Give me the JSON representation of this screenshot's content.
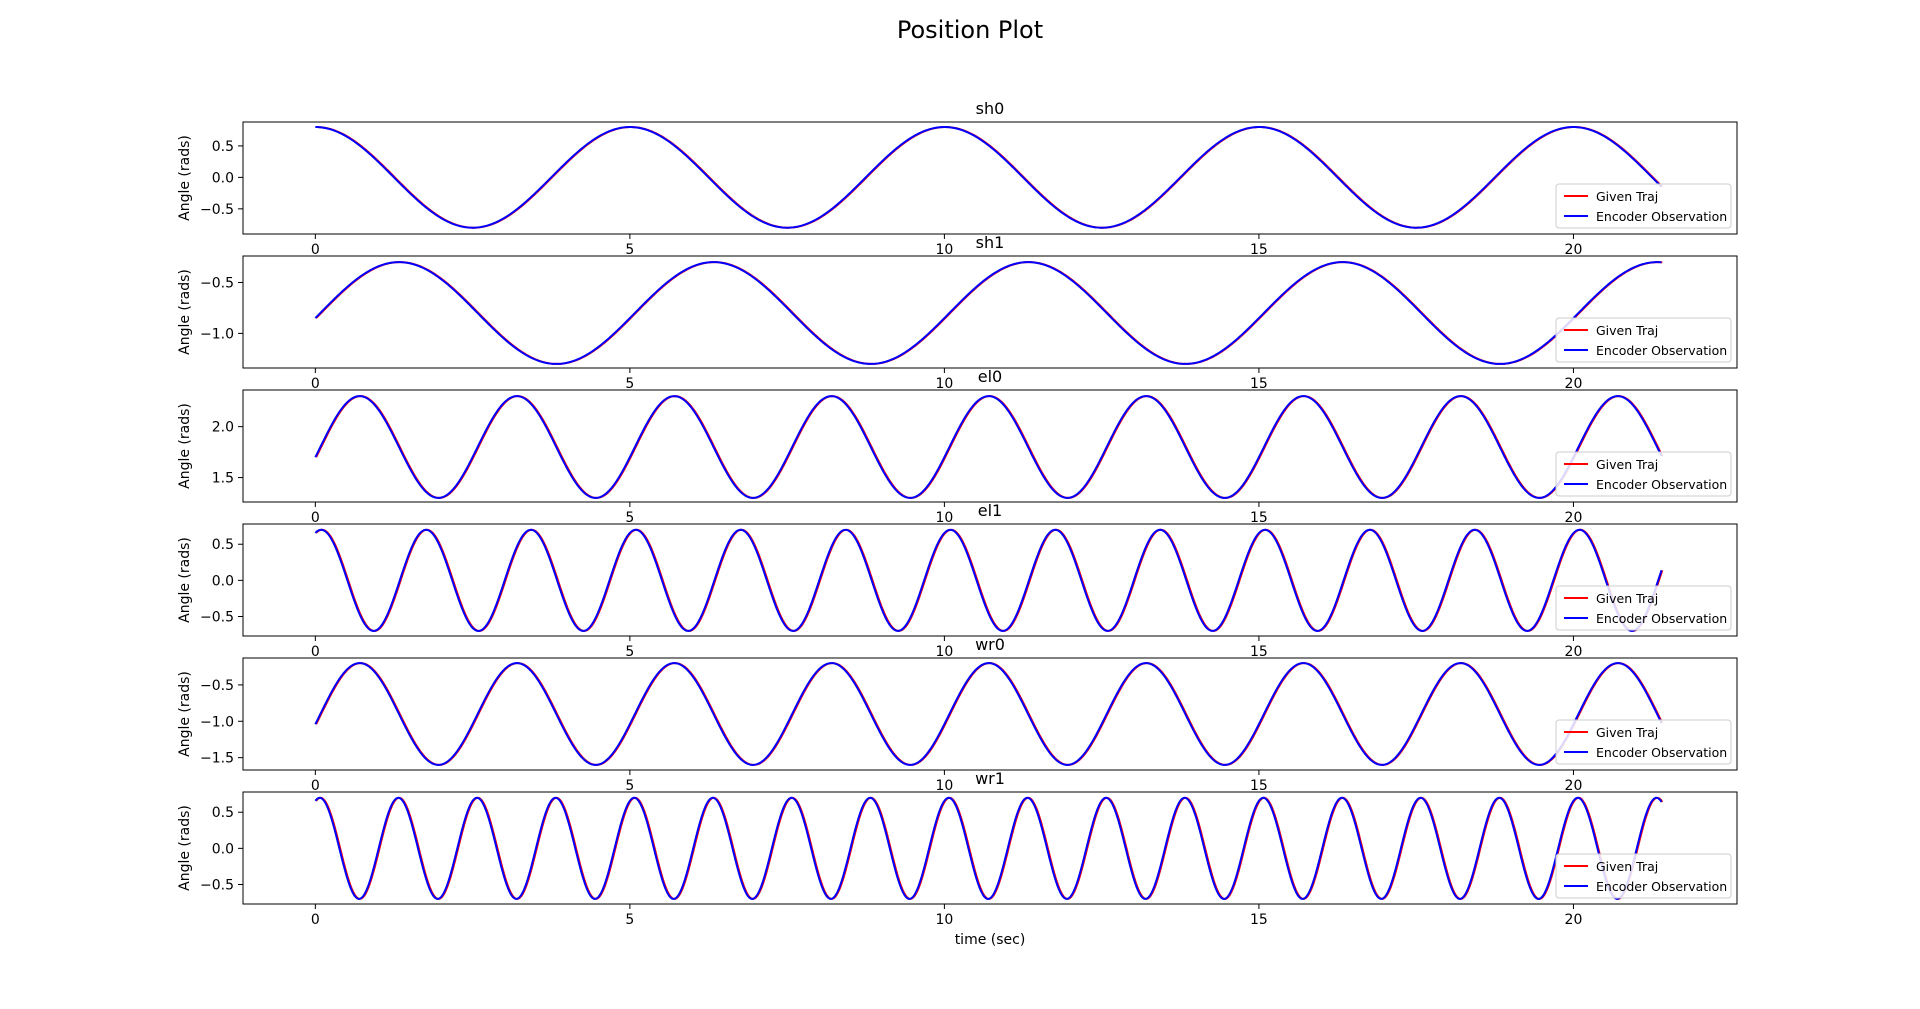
{
  "suptitle": "Position Plot",
  "colors": {
    "given": "#ff0000",
    "encoder": "#0000ff",
    "axes": "#000000",
    "legend_border": "#cccccc"
  },
  "legend_placement": "lower right",
  "chart_data": [
    {
      "type": "line",
      "title": "sh0",
      "xlabel": "",
      "ylabel": "Angle (rads)",
      "xlim": [
        -1.15,
        22.6
      ],
      "ylim": [
        -0.9,
        0.88
      ],
      "xticks": [
        0,
        5,
        10,
        15,
        20
      ],
      "yticks": [
        0.5,
        0.0,
        -0.5
      ],
      "ytick_labels": [
        "0.5",
        "0.0",
        "−0.5"
      ],
      "wave": {
        "t_end": 21.4,
        "center": 0.0,
        "amplitude": 0.8,
        "period": 5.0,
        "phase_deg": 90
      },
      "series": [
        {
          "name": "Given Traj"
        },
        {
          "name": "Encoder Observation"
        }
      ],
      "grid": false
    },
    {
      "type": "line",
      "title": "sh1",
      "xlabel": "",
      "ylabel": "Angle (rads)",
      "xlim": [
        -1.15,
        22.6
      ],
      "ylim": [
        -1.34,
        -0.24
      ],
      "xticks": [
        0,
        5,
        10,
        15,
        20
      ],
      "yticks": [
        -0.5,
        -1.0
      ],
      "ytick_labels": [
        "−0.5",
        "−1.0"
      ],
      "wave": {
        "t_end": 21.4,
        "center": -0.8,
        "amplitude": 0.5,
        "period": 5.0,
        "phase_deg": -5.7
      },
      "series": [
        {
          "name": "Given Traj"
        },
        {
          "name": "Encoder Observation"
        }
      ],
      "grid": false
    },
    {
      "type": "line",
      "title": "el0",
      "xlabel": "",
      "ylabel": "Angle (rads)",
      "xlim": [
        -1.15,
        22.6
      ],
      "ylim": [
        1.26,
        2.36
      ],
      "xticks": [
        0,
        5,
        10,
        15,
        20
      ],
      "yticks": [
        2.0,
        1.5
      ],
      "ytick_labels": [
        "2.0",
        "1.5"
      ],
      "wave": {
        "t_end": 21.4,
        "center": 1.8,
        "amplitude": 0.5,
        "period": 2.5,
        "phase_deg": -11.5
      },
      "series": [
        {
          "name": "Given Traj"
        },
        {
          "name": "Encoder Observation"
        }
      ],
      "grid": false
    },
    {
      "type": "line",
      "title": "el1",
      "xlabel": "",
      "ylabel": "Angle (rads)",
      "xlim": [
        -1.15,
        22.6
      ],
      "ylim": [
        -0.77,
        0.78
      ],
      "xticks": [
        0,
        5,
        10,
        15,
        20
      ],
      "yticks": [
        0.5,
        0.0,
        -0.5
      ],
      "ytick_labels": [
        "0.5",
        "0.0",
        "−0.5"
      ],
      "wave": {
        "t_end": 21.4,
        "center": 0.0,
        "amplitude": 0.7,
        "period": 1.667,
        "phase_deg": 70
      },
      "series": [
        {
          "name": "Given Traj"
        },
        {
          "name": "Encoder Observation"
        }
      ],
      "grid": false
    },
    {
      "type": "line",
      "title": "wr0",
      "xlabel": "",
      "ylabel": "Angle (rads)",
      "xlim": [
        -1.15,
        22.6
      ],
      "ylim": [
        -1.67,
        -0.13
      ],
      "xticks": [
        0,
        5,
        10,
        15,
        20
      ],
      "yticks": [
        -0.5,
        -1.0,
        -1.5
      ],
      "ytick_labels": [
        "−0.5",
        "−1.0",
        "−1.5"
      ],
      "wave": {
        "t_end": 21.4,
        "center": -0.9,
        "amplitude": 0.7,
        "period": 2.5,
        "phase_deg": -11.5
      },
      "series": [
        {
          "name": "Given Traj"
        },
        {
          "name": "Encoder Observation"
        }
      ],
      "grid": false
    },
    {
      "type": "line",
      "title": "wr1",
      "xlabel": "time (sec)",
      "ylabel": "Angle (rads)",
      "xlim": [
        -1.15,
        22.6
      ],
      "ylim": [
        -0.77,
        0.78
      ],
      "xticks": [
        0,
        5,
        10,
        15,
        20
      ],
      "yticks": [
        0.5,
        0.0,
        -0.5
      ],
      "ytick_labels": [
        "0.5",
        "0.0",
        "−0.5"
      ],
      "wave": {
        "t_end": 21.4,
        "center": 0.0,
        "amplitude": 0.7,
        "period": 1.25,
        "phase_deg": 70
      },
      "series": [
        {
          "name": "Given Traj"
        },
        {
          "name": "Encoder Observation"
        }
      ],
      "grid": false
    }
  ]
}
